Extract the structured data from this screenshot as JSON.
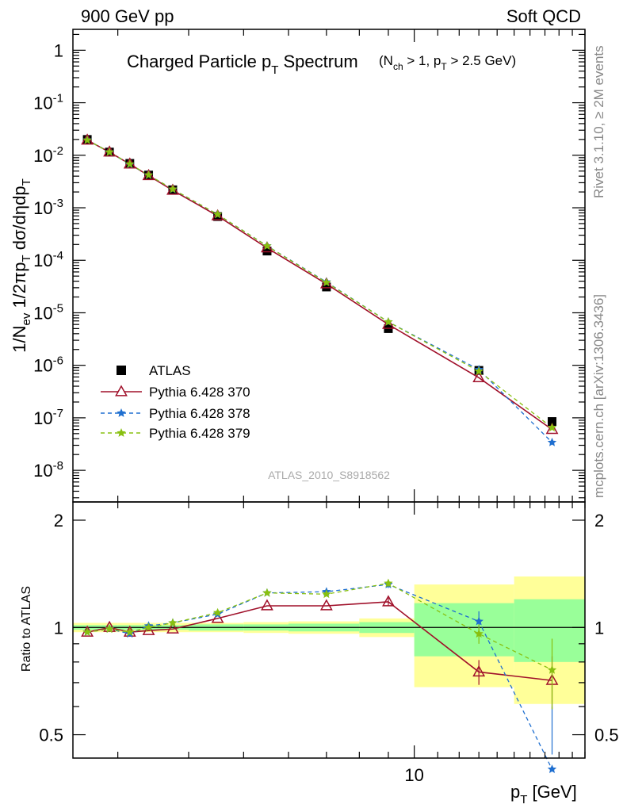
{
  "header": {
    "left": "900 GeV pp",
    "right": "Soft QCD"
  },
  "side": {
    "top": "Rivet 3.1.10, ≥ 2M events",
    "bottom": "mcplots.cern.ch [arXiv:1306.3436]"
  },
  "watermark": "ATLAS_2010_S8918562",
  "chart_data": [
    {
      "type": "scatter",
      "title": "Charged Particle p_T Spectrum",
      "subtitle": "(N_ch > 1, p_T > 2.5 GeV)",
      "ylabel": "1/N_ev 1/2πp_T dσ/dηdp_T",
      "yscale": "log",
      "xscale": "log",
      "xlim": [
        2.5,
        20
      ],
      "ylim": [
        2.5e-09,
        2.5
      ],
      "y_ticks": [
        "1",
        "10^-1",
        "10^-2",
        "10^-3",
        "10^-4",
        "10^-5",
        "10^-6",
        "10^-7",
        "10^-8"
      ],
      "legend_position": "middle-left",
      "x": [
        2.65,
        2.9,
        3.15,
        3.4,
        3.75,
        4.5,
        5.5,
        7,
        9,
        13,
        17.5
      ],
      "series": [
        {
          "name": "ATLAS",
          "color": "#000000",
          "marker": "square",
          "values": [
            0.02,
            0.0115,
            0.007,
            0.0042,
            0.0022,
            0.00068,
            0.00015,
            3.1e-05,
            5e-06,
            8e-07,
            8.5e-08
          ]
        },
        {
          "name": "Pythia 6.428 370",
          "color": "#a0102a",
          "marker": "triangle-open",
          "line": "solid",
          "values": [
            0.0194,
            0.0115,
            0.0068,
            0.0041,
            0.00215,
            0.0007,
            0.000172,
            3.55e-05,
            6e-06,
            5.8e-07,
            6e-08
          ]
        },
        {
          "name": "Pythia 6.428 378",
          "color": "#1f6fd0",
          "marker": "star",
          "line": "dashed",
          "values": [
            0.0195,
            0.0115,
            0.0067,
            0.0042,
            0.00225,
            0.000745,
            0.000188,
            3.85e-05,
            6.7e-06,
            8.3e-07,
            3.4e-08
          ]
        },
        {
          "name": "Pythia 6.428 379",
          "color": "#88c010",
          "marker": "star",
          "line": "dashed",
          "values": [
            0.0194,
            0.0115,
            0.0068,
            0.0042,
            0.00226,
            0.000748,
            0.000187,
            3.78e-05,
            6.7e-06,
            7.7e-07,
            6.5e-08
          ]
        }
      ]
    },
    {
      "type": "line",
      "ylabel": "Ratio to ATLAS",
      "xlabel": "p_T [GeV]",
      "xscale": "log",
      "xlim": [
        2.5,
        20
      ],
      "ylim": [
        0.43,
        2.25
      ],
      "y_ticks": [
        0.5,
        1,
        2
      ],
      "x_tick_labels": [
        "10"
      ],
      "x": [
        2.65,
        2.9,
        3.15,
        3.4,
        3.75,
        4.5,
        5.5,
        7,
        9,
        13,
        17.5
      ],
      "bands": {
        "edges": [
          2.5,
          2.8,
          3.0,
          3.3,
          3.5,
          4.0,
          5.0,
          6.0,
          8.0,
          10.0,
          15.0,
          20.0
        ],
        "green_half_width": [
          0.015,
          0.015,
          0.015,
          0.015,
          0.015,
          0.02,
          0.02,
          0.025,
          0.035,
          0.17,
          0.2
        ],
        "yellow_half_width": [
          0.03,
          0.03,
          0.03,
          0.03,
          0.03,
          0.03,
          0.035,
          0.04,
          0.06,
          0.32,
          0.39
        ]
      },
      "series": [
        {
          "name": "Pythia 6.428 370",
          "color": "#a0102a",
          "values": [
            0.97,
            1.0,
            0.97,
            0.98,
            0.99,
            1.06,
            1.15,
            1.15,
            1.18,
            0.75,
            0.71
          ],
          "errors": [
            0,
            0,
            0,
            0,
            0,
            0,
            0,
            0,
            0.03,
            0.06,
            0.12
          ]
        },
        {
          "name": "Pythia 6.428 378",
          "color": "#1f6fd0",
          "values": [
            0.97,
            0.99,
            0.96,
            1.01,
            1.03,
            1.09,
            1.25,
            1.26,
            1.32,
            1.04,
            0.4
          ],
          "errors": [
            0,
            0,
            0,
            0,
            0,
            0,
            0,
            0,
            0.03,
            0.07,
            0.2
          ]
        },
        {
          "name": "Pythia 6.428 379",
          "color": "#88c010",
          "values": [
            0.97,
            0.99,
            0.97,
            1.0,
            1.03,
            1.1,
            1.25,
            1.24,
            1.33,
            0.96,
            0.76
          ],
          "errors": [
            0,
            0,
            0,
            0,
            0,
            0,
            0,
            0,
            0.03,
            0.06,
            0.17
          ]
        }
      ]
    }
  ]
}
